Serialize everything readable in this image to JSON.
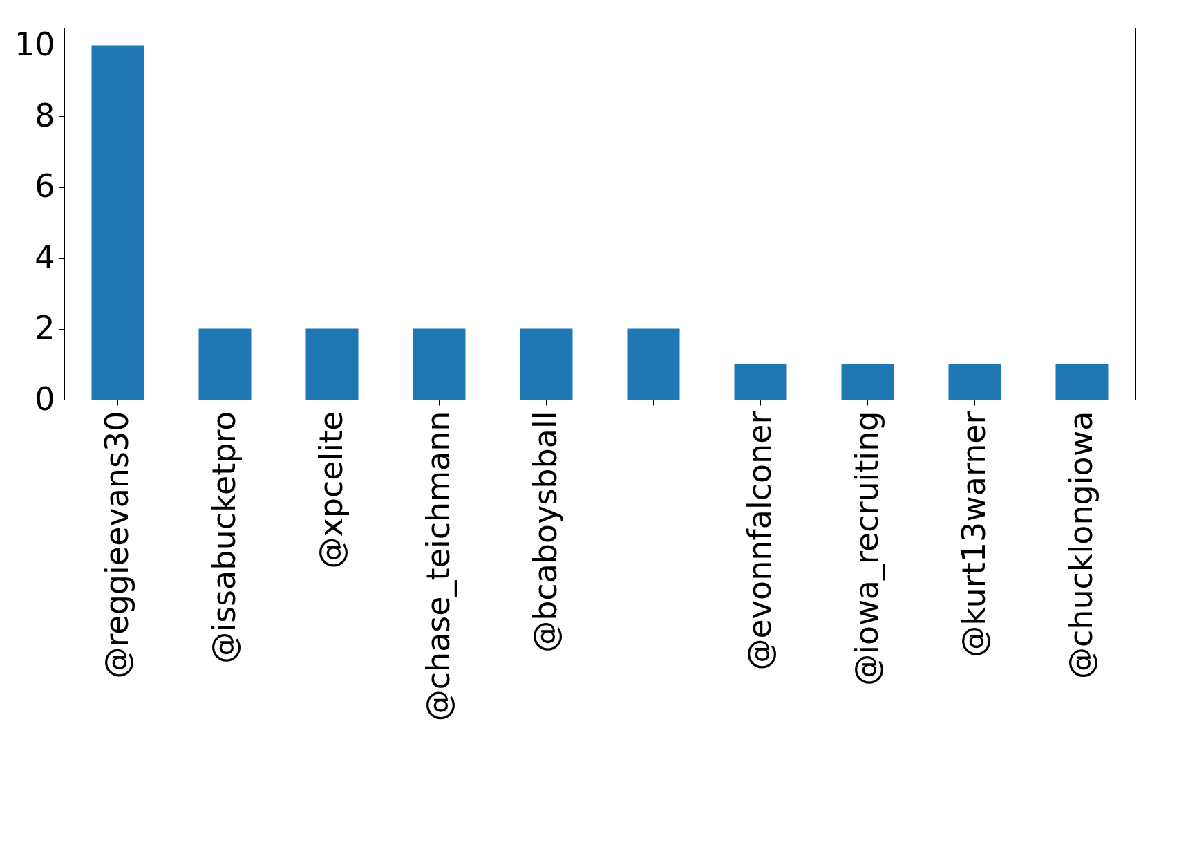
{
  "chart_data": {
    "type": "bar",
    "categories": [
      "@reggieevans30",
      "@issabucketpro",
      "@xpcelite",
      "@chase_teichmann",
      "@bcaboysbball",
      null,
      "@evonnfalconer",
      "@iowa_recruiting",
      "@kurt13warner",
      "@chucklongiowa"
    ],
    "values": [
      10,
      2,
      2,
      2,
      2,
      2,
      1,
      1,
      1,
      1
    ],
    "color": "#1f77b4",
    "ylim": [
      0,
      10.5
    ],
    "yticks": [
      0,
      2,
      4,
      6,
      8,
      10
    ],
    "grid": false
  }
}
